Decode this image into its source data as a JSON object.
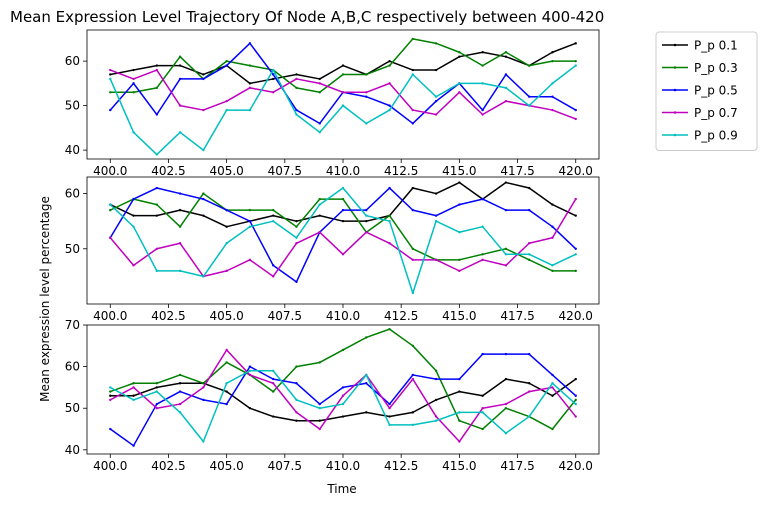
{
  "title": "Mean Expression Level Trajectory Of Node A,B,C respectively between 400-420",
  "ylabel": "Mean expression level percentage",
  "xlabel": "Time",
  "legend": {
    "placement": "outside upper right",
    "entries": [
      {
        "name": "P_p 0.1",
        "color": "#000000"
      },
      {
        "name": "P_p 0.3",
        "color": "#008000"
      },
      {
        "name": "P_p 0.5",
        "color": "#0000ff"
      },
      {
        "name": "P_p 0.7",
        "color": "#c000c0"
      },
      {
        "name": "P_p 0.9",
        "color": "#00bfbf"
      }
    ]
  },
  "chart_data": [
    {
      "type": "line",
      "panel": "Node A",
      "x": [
        400,
        401,
        402,
        403,
        404,
        405,
        406,
        407,
        408,
        409,
        410,
        411,
        412,
        413,
        414,
        415,
        416,
        417,
        418,
        419,
        420
      ],
      "xlim": [
        399.0,
        421.0
      ],
      "ylim": [
        38,
        67
      ],
      "xticks": [
        "400.0",
        "402.5",
        "405.0",
        "407.5",
        "410.0",
        "412.5",
        "415.0",
        "417.5",
        "420.0"
      ],
      "xtick_values": [
        400,
        402.5,
        405,
        407.5,
        410,
        412.5,
        415,
        417.5,
        420
      ],
      "yticks": [
        "40",
        "50",
        "60"
      ],
      "ytick_values": [
        40,
        50,
        60
      ],
      "series": [
        {
          "name": "P_p 0.1",
          "values": [
            57,
            58,
            59,
            59,
            57,
            59,
            55,
            56,
            57,
            56,
            59,
            57,
            60,
            58,
            58,
            61,
            62,
            61,
            59,
            62,
            64
          ]
        },
        {
          "name": "P_p 0.3",
          "values": [
            53,
            53,
            54,
            61,
            56,
            60,
            59,
            58,
            54,
            53,
            57,
            57,
            59,
            65,
            64,
            62,
            59,
            62,
            59,
            60,
            60
          ]
        },
        {
          "name": "P_p 0.5",
          "values": [
            49,
            55,
            48,
            56,
            56,
            59,
            64,
            57,
            49,
            46,
            53,
            52,
            50,
            46,
            51,
            55,
            49,
            57,
            52,
            52,
            49
          ]
        },
        {
          "name": "P_p 0.7",
          "values": [
            58,
            56,
            58,
            50,
            49,
            51,
            54,
            53,
            56,
            55,
            53,
            53,
            55,
            49,
            48,
            53,
            48,
            51,
            50,
            49,
            47
          ]
        },
        {
          "name": "P_p 0.9",
          "values": [
            56,
            44,
            39,
            44,
            40,
            49,
            49,
            58,
            48,
            44,
            50,
            46,
            49,
            57,
            52,
            55,
            55,
            54,
            50,
            55,
            59
          ]
        }
      ]
    },
    {
      "type": "line",
      "panel": "Node B",
      "x": [
        400,
        401,
        402,
        403,
        404,
        405,
        406,
        407,
        408,
        409,
        410,
        411,
        412,
        413,
        414,
        415,
        416,
        417,
        418,
        419,
        420
      ],
      "xlim": [
        399.0,
        421.0
      ],
      "ylim": [
        40,
        63
      ],
      "xticks": [
        "400.0",
        "402.5",
        "405.0",
        "407.5",
        "410.0",
        "412.5",
        "415.0",
        "417.5",
        "420.0"
      ],
      "xtick_values": [
        400,
        402.5,
        405,
        407.5,
        410,
        412.5,
        415,
        417.5,
        420
      ],
      "yticks": [
        "50",
        "60"
      ],
      "ytick_values": [
        50,
        60
      ],
      "series": [
        {
          "name": "P_p 0.1",
          "values": [
            58,
            56,
            56,
            57,
            56,
            54,
            55,
            56,
            55,
            56,
            55,
            55,
            56,
            61,
            60,
            62,
            59,
            62,
            61,
            58,
            56
          ]
        },
        {
          "name": "P_p 0.3",
          "values": [
            57,
            59,
            58,
            54,
            60,
            57,
            57,
            57,
            54,
            59,
            59,
            53,
            56,
            50,
            48,
            48,
            49,
            50,
            48,
            46,
            46
          ]
        },
        {
          "name": "P_p 0.5",
          "values": [
            52,
            59,
            61,
            60,
            59,
            57,
            55,
            47,
            44,
            53,
            57,
            57,
            61,
            57,
            56,
            58,
            59,
            57,
            57,
            54,
            50
          ]
        },
        {
          "name": "P_p 0.7",
          "values": [
            52,
            47,
            50,
            51,
            45,
            46,
            48,
            45,
            51,
            53,
            49,
            53,
            51,
            48,
            48,
            46,
            48,
            47,
            51,
            52,
            59
          ]
        },
        {
          "name": "P_p 0.9",
          "values": [
            58,
            54,
            46,
            46,
            45,
            51,
            54,
            55,
            52,
            58,
            61,
            56,
            55,
            42,
            55,
            53,
            54,
            49,
            49,
            47,
            49
          ]
        }
      ]
    },
    {
      "type": "line",
      "panel": "Node C",
      "x": [
        400,
        401,
        402,
        403,
        404,
        405,
        406,
        407,
        408,
        409,
        410,
        411,
        412,
        413,
        414,
        415,
        416,
        417,
        418,
        419,
        420
      ],
      "xlim": [
        399.0,
        421.0
      ],
      "ylim": [
        39,
        70
      ],
      "xticks": [
        "400.0",
        "402.5",
        "405.0",
        "407.5",
        "410.0",
        "412.5",
        "415.0",
        "417.5",
        "420.0"
      ],
      "xtick_values": [
        400,
        402.5,
        405,
        407.5,
        410,
        412.5,
        415,
        417.5,
        420
      ],
      "yticks": [
        "40",
        "50",
        "60",
        "70"
      ],
      "ytick_values": [
        40,
        50,
        60,
        70
      ],
      "series": [
        {
          "name": "P_p 0.1",
          "values": [
            53,
            53,
            55,
            56,
            56,
            54,
            50,
            48,
            47,
            47,
            48,
            49,
            48,
            49,
            52,
            54,
            53,
            57,
            56,
            53,
            57
          ]
        },
        {
          "name": "P_p 0.3",
          "values": [
            54,
            56,
            56,
            58,
            56,
            61,
            58,
            54,
            60,
            61,
            64,
            67,
            69,
            65,
            59,
            47,
            45,
            50,
            48,
            45,
            52
          ]
        },
        {
          "name": "P_p 0.5",
          "values": [
            45,
            41,
            51,
            54,
            52,
            51,
            60,
            57,
            56,
            51,
            55,
            56,
            51,
            58,
            57,
            57,
            63,
            63,
            63,
            58,
            53
          ]
        },
        {
          "name": "P_p 0.7",
          "values": [
            52,
            55,
            50,
            51,
            55,
            64,
            58,
            56,
            49,
            45,
            53,
            58,
            50,
            57,
            48,
            42,
            50,
            51,
            54,
            55,
            48
          ]
        },
        {
          "name": "P_p 0.9",
          "values": [
            55,
            52,
            54,
            49,
            42,
            56,
            59,
            59,
            52,
            50,
            51,
            58,
            46,
            46,
            47,
            49,
            49,
            44,
            48,
            56,
            51
          ]
        }
      ]
    }
  ]
}
